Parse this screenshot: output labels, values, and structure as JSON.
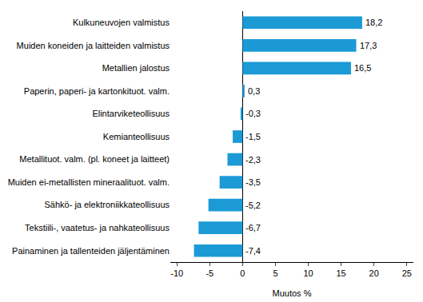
{
  "chart_data": {
    "type": "bar",
    "orientation": "horizontal",
    "categories": [
      "Kulkuneuvojen valmistus",
      "Muiden koneiden ja laitteiden valmistus",
      "Metallien jalostus",
      "Paperin, paperi- ja kartonkituot. valm.",
      "Elintarviketeollisuus",
      "Kemianteollisuus",
      "Metallituot. valm. (pl. koneet ja laitteet)",
      "Muiden ei-metallisten mineraalituot. valm.",
      "Sähkö- ja elektroniikkateollisuus",
      "Tekstiili-, vaatetus- ja nahkateollisuus",
      "Painaminen ja tallenteiden jäljentäminen"
    ],
    "values": [
      18.2,
      17.3,
      16.5,
      0.3,
      -0.3,
      -1.5,
      -2.3,
      -3.5,
      -5.2,
      -6.7,
      -7.4
    ],
    "value_labels": [
      "18,2",
      "17,3",
      "16,5",
      "0,3",
      "-0,3",
      "-1,5",
      "-2,3",
      "-3,5",
      "-5,2",
      "-6,7",
      "-7,4"
    ],
    "data_labels": true,
    "color": "#1b9ad6",
    "x_label": "Muutos %",
    "xlim": [
      -11,
      26
    ],
    "xticks": [
      -10,
      -5,
      0,
      5,
      10,
      15,
      20,
      25
    ],
    "grid": false
  }
}
